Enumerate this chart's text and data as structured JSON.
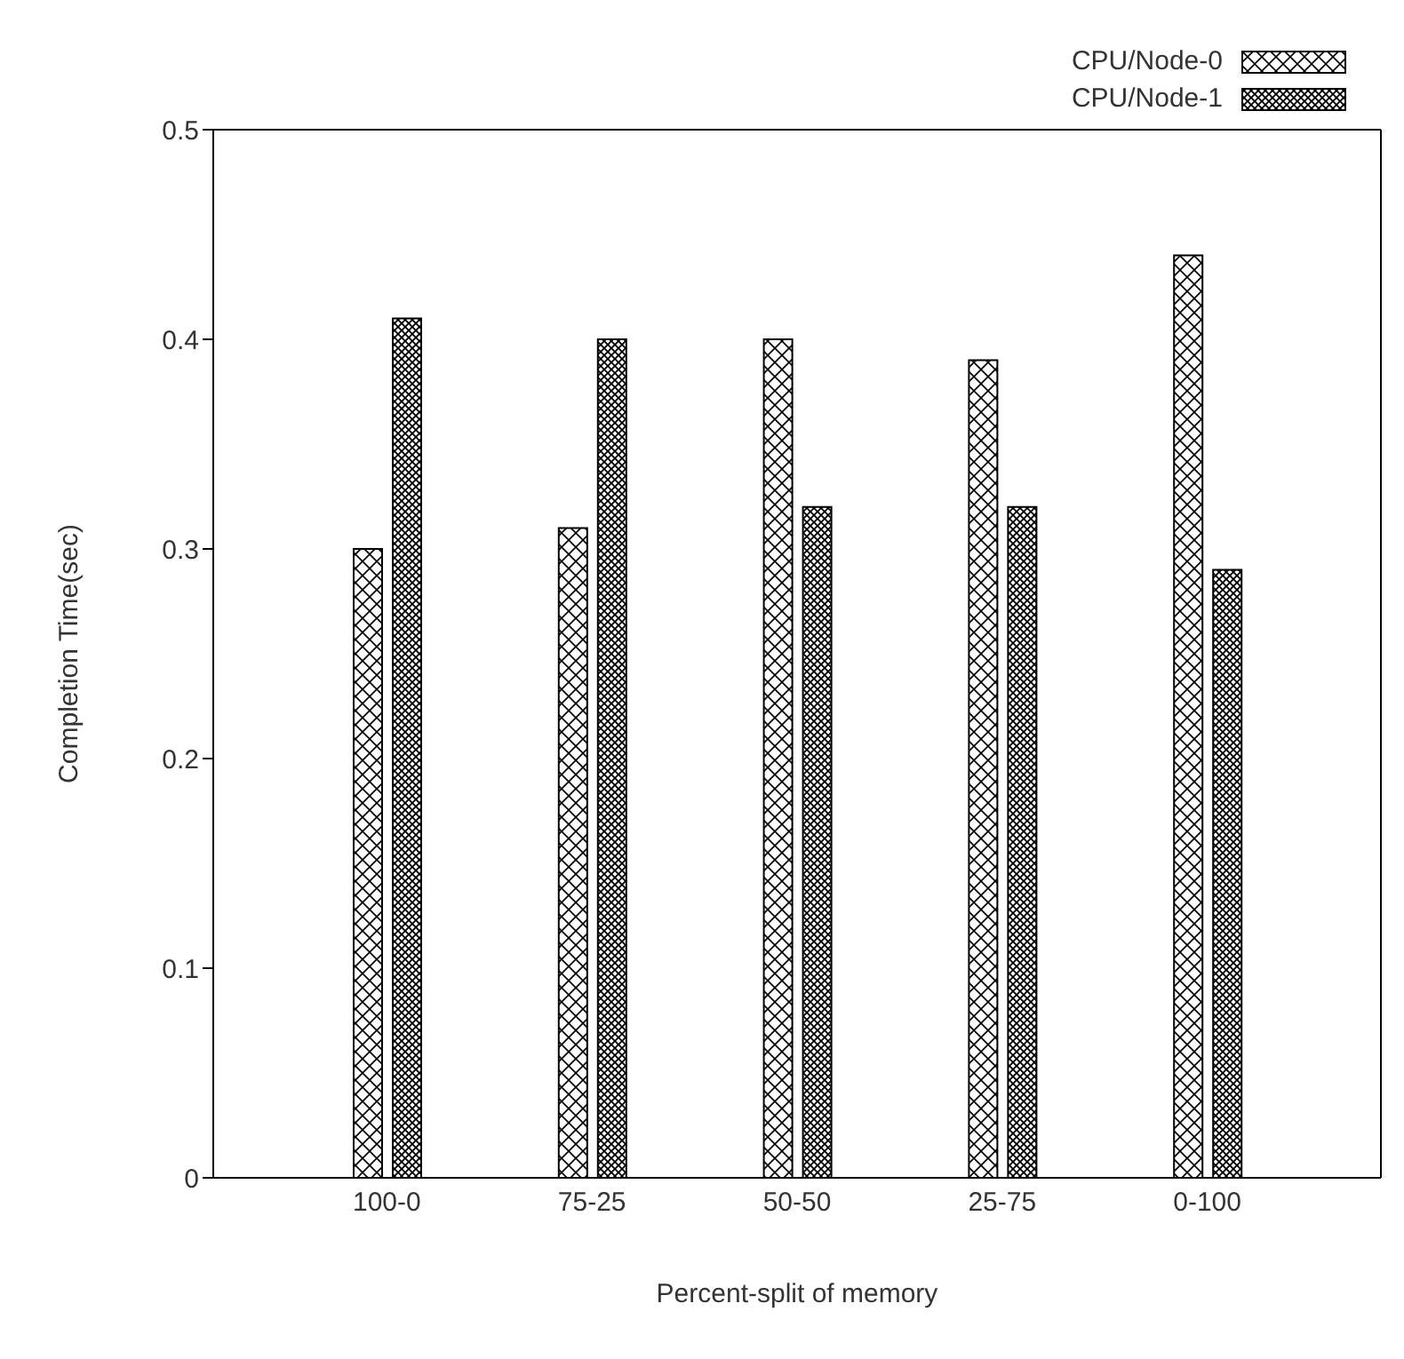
{
  "chart_data": {
    "type": "bar",
    "xlabel": "Percent-split of memory",
    "ylabel": "Completion Time(sec)",
    "categories": [
      "100-0",
      "75-25",
      "50-50",
      "25-75",
      "0-100"
    ],
    "series": [
      {
        "name": "CPU/Node-0",
        "color": "#000000",
        "values": [
          0.3,
          0.31,
          0.4,
          0.39,
          0.44
        ]
      },
      {
        "name": "CPU/Node-1",
        "color": "#000000",
        "values": [
          0.41,
          0.4,
          0.32,
          0.32,
          0.29
        ]
      }
    ],
    "ylim": [
      0,
      0.5
    ],
    "yticks": [
      0,
      0.1,
      0.2,
      0.3,
      0.4,
      0.5
    ],
    "grid": false,
    "legend": "top right"
  }
}
